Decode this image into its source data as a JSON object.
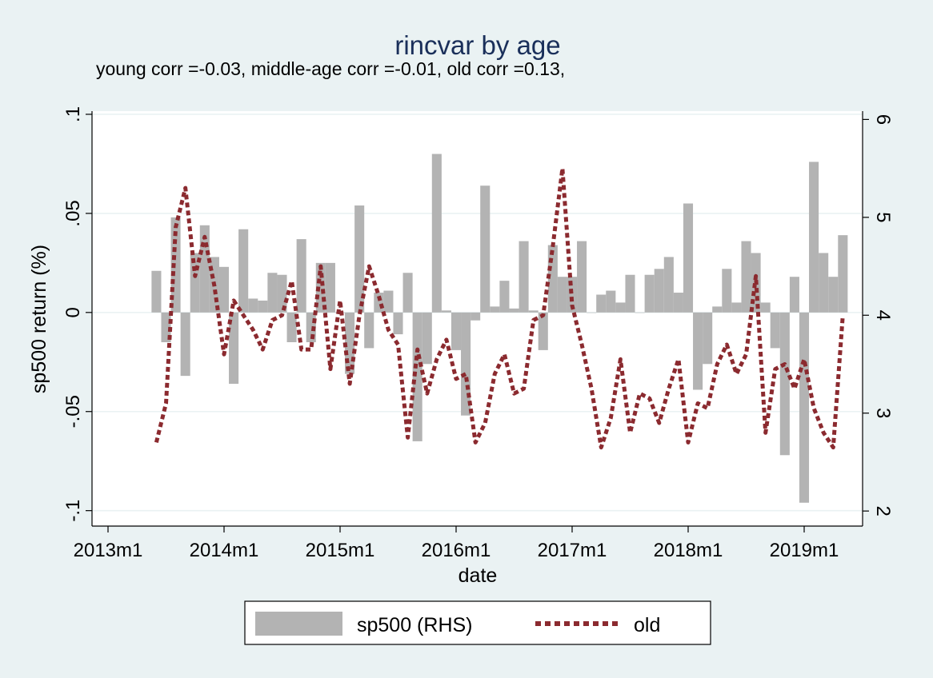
{
  "chart_data": {
    "type": "bar+line",
    "title": "rincvar by age",
    "subtitle": "young corr =-0.03, middle-age corr =-0.01, old corr =0.13,",
    "xlabel": "date",
    "ylabel_left": "sp500 return (%)",
    "ylabel_right": "",
    "x_ticks": [
      "2013m1",
      "2014m1",
      "2015m1",
      "2016m1",
      "2017m1",
      "2018m1",
      "2019m1"
    ],
    "y_left_ticks": [
      ".1",
      ".05",
      "0",
      "-.05",
      "-.1"
    ],
    "y_left_tick_values": [
      0.1,
      0.05,
      0,
      -0.05,
      -0.1
    ],
    "y_right_ticks": [
      "6",
      "5",
      "4",
      "3",
      "2"
    ],
    "y_right_tick_values": [
      6,
      5,
      4,
      3,
      2
    ],
    "ylim_left": [
      -0.1078,
      0.1016
    ],
    "ylim_right": [
      1.846,
      6.085
    ],
    "x_start_month": "2013m6",
    "months": [
      "2013m6",
      "2013m7",
      "2013m8",
      "2013m9",
      "2013m10",
      "2013m11",
      "2013m12",
      "2014m1",
      "2014m2",
      "2014m3",
      "2014m4",
      "2014m5",
      "2014m6",
      "2014m7",
      "2014m8",
      "2014m9",
      "2014m10",
      "2014m11",
      "2014m12",
      "2015m1",
      "2015m2",
      "2015m3",
      "2015m4",
      "2015m5",
      "2015m6",
      "2015m7",
      "2015m8",
      "2015m9",
      "2015m10",
      "2015m11",
      "2015m12",
      "2016m1",
      "2016m2",
      "2016m3",
      "2016m4",
      "2016m5",
      "2016m6",
      "2016m7",
      "2016m8",
      "2016m9",
      "2016m10",
      "2016m11",
      "2016m12",
      "2017m1",
      "2017m2",
      "2017m3",
      "2017m4",
      "2017m5",
      "2017m6",
      "2017m7",
      "2017m8",
      "2017m9",
      "2017m10",
      "2017m11",
      "2017m12",
      "2018m1",
      "2018m2",
      "2018m3",
      "2018m4",
      "2018m5",
      "2018m6",
      "2018m7",
      "2018m8",
      "2018m9",
      "2018m10",
      "2018m11",
      "2018m12",
      "2019m1",
      "2019m2",
      "2019m3",
      "2019m4",
      "2019m5"
    ],
    "series": [
      {
        "name": "sp500 (RHS)",
        "axis": "left",
        "color": "#b3b3b3",
        "type": "bar",
        "values": [
          0.021,
          -0.015,
          0.048,
          -0.032,
          0.03,
          0.044,
          0.028,
          0.023,
          -0.036,
          0.042,
          0.007,
          0.006,
          0.02,
          0.019,
          -0.015,
          0.037,
          -0.015,
          0.025,
          0.025,
          0.0,
          -0.031,
          0.054,
          -0.018,
          0.01,
          0.011,
          -0.011,
          0.02,
          -0.065,
          -0.026,
          0.08,
          0.001,
          -0.019,
          -0.052,
          -0.004,
          0.064,
          0.003,
          0.016,
          0.002,
          0.036,
          0.001,
          -0.019,
          0.034,
          0.018,
          0.018,
          0.036,
          0.0,
          0.009,
          0.011,
          0.005,
          0.019,
          0.0,
          0.019,
          0.022,
          0.028,
          0.01,
          0.055,
          -0.039,
          -0.026,
          0.003,
          0.022,
          0.005,
          0.036,
          0.03,
          0.005,
          -0.018,
          -0.072,
          0.018,
          -0.096,
          0.076,
          0.03,
          0.018,
          0.039
        ]
      },
      {
        "name": "old",
        "axis": "right",
        "color": "#8b2a2f",
        "type": "line",
        "style": "dotted",
        "values": [
          2.7,
          3.1,
          4.9,
          5.3,
          4.4,
          4.8,
          4.3,
          3.6,
          4.15,
          4.0,
          3.85,
          3.65,
          3.95,
          4.0,
          4.35,
          3.65,
          3.65,
          4.5,
          3.45,
          4.15,
          3.3,
          4.0,
          4.5,
          4.2,
          3.85,
          3.7,
          2.75,
          3.65,
          3.2,
          3.55,
          3.75,
          3.35,
          3.4,
          2.7,
          2.9,
          3.4,
          3.6,
          3.2,
          3.25,
          3.95,
          4.0,
          4.7,
          5.5,
          4.1,
          3.7,
          3.25,
          2.65,
          2.95,
          3.55,
          2.8,
          3.2,
          3.15,
          2.9,
          3.25,
          3.55,
          2.7,
          3.1,
          3.05,
          3.5,
          3.7,
          3.4,
          3.6,
          4.4,
          2.8,
          3.45,
          3.5,
          3.25,
          3.55,
          3.05,
          2.8,
          2.65,
          4.0
        ]
      }
    ],
    "legend": {
      "placement": "bottom",
      "items": [
        {
          "label": "sp500 (RHS)",
          "symbol": "bar"
        },
        {
          "label": "old",
          "symbol": "dotted-line"
        }
      ]
    },
    "grid": true,
    "colors": {
      "background": "#eaf2f3",
      "plot_background": "#ffffff",
      "gridline": "#eaf2f3",
      "title": "#1a2f5a"
    }
  }
}
